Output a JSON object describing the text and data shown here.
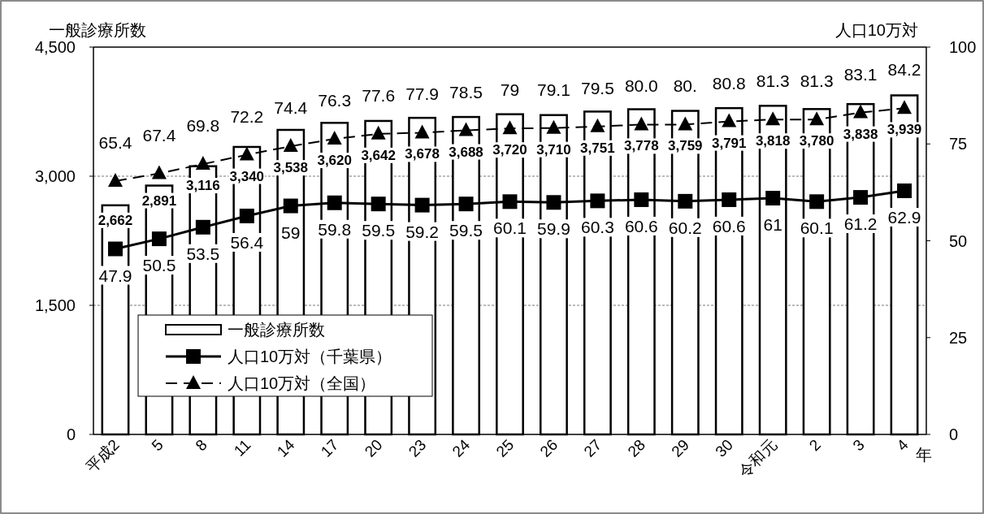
{
  "chart_data": {
    "type": "bar",
    "xlabel": "年",
    "ylabel": "一般診療所数",
    "y2label": "人口10万対",
    "categories": [
      "平成2",
      "5",
      "8",
      "11",
      "14",
      "17",
      "20",
      "23",
      "24",
      "25",
      "26",
      "27",
      "28",
      "29",
      "30",
      "令和元",
      "2",
      "3",
      "4"
    ],
    "ylim": [
      0,
      4500
    ],
    "yticks": [
      0,
      {
        "value": 1500,
        "label": "1,500"
      },
      {
        "value": 3000,
        "label": "3,000"
      },
      {
        "value": 4500,
        "label": "4,500"
      }
    ],
    "y2lim": [
      0,
      100
    ],
    "y2ticks": [
      0,
      25,
      50,
      75,
      100
    ],
    "grid": "y",
    "legend": "bottom left",
    "series": [
      {
        "name": "一般診療所数",
        "color": "#ffffff",
        "values": [
          2662,
          2891,
          3116,
          3340,
          3538,
          3620,
          3642,
          3678,
          3688,
          3720,
          3710,
          3751,
          3778,
          3759,
          3791,
          3818,
          3780,
          3838,
          3939
        ],
        "value_labels": [
          "2,662",
          "2,891",
          "3,116",
          "3,340",
          "3,538",
          "3,620",
          "3,642",
          "3,678",
          "3,688",
          "3,720",
          "3,710",
          "3,751",
          "3,778",
          "3,759",
          "3,791",
          "3,818",
          "3,780",
          "3,838",
          "3,939"
        ]
      },
      {
        "name": "人口10万対（千葉県）",
        "type": "line",
        "axis": "y2",
        "color": "#000000",
        "marker": "square",
        "line_style": "solid",
        "values": [
          47.9,
          50.5,
          53.5,
          56.4,
          59,
          59.8,
          59.5,
          59.2,
          59.5,
          60.1,
          59.9,
          60.3,
          60.6,
          60.2,
          60.6,
          61,
          60.1,
          61.2,
          62.9
        ],
        "value_labels": [
          "47.9",
          "50.5",
          "53.5",
          "56.4",
          "59",
          "59.8",
          "59.5",
          "59.2",
          "59.5",
          "60.1",
          "59.9",
          "60.3",
          "60.6",
          "60.2",
          "60.6",
          "61",
          "60.1",
          "61.2",
          "62.9"
        ]
      },
      {
        "name": "人口10万対（全国）",
        "type": "line",
        "axis": "y2",
        "color": "#000000",
        "marker": "triangle",
        "line_style": "dashed",
        "values": [
          65.4,
          67.4,
          69.8,
          72.2,
          74.4,
          76.3,
          77.6,
          77.9,
          78.5,
          79,
          79.1,
          79.5,
          80.0,
          80.0,
          80.8,
          81.3,
          81.3,
          83.1,
          84.2
        ],
        "value_labels": [
          "65.4",
          "67.4",
          "69.8",
          "72.2",
          "74.4",
          "76.3",
          "77.6",
          "77.9",
          "78.5",
          "79",
          "79.1",
          "79.5",
          "80.0",
          "80.",
          "80.8",
          "81.3",
          "81.3",
          "83.1",
          "84.2"
        ]
      }
    ]
  }
}
